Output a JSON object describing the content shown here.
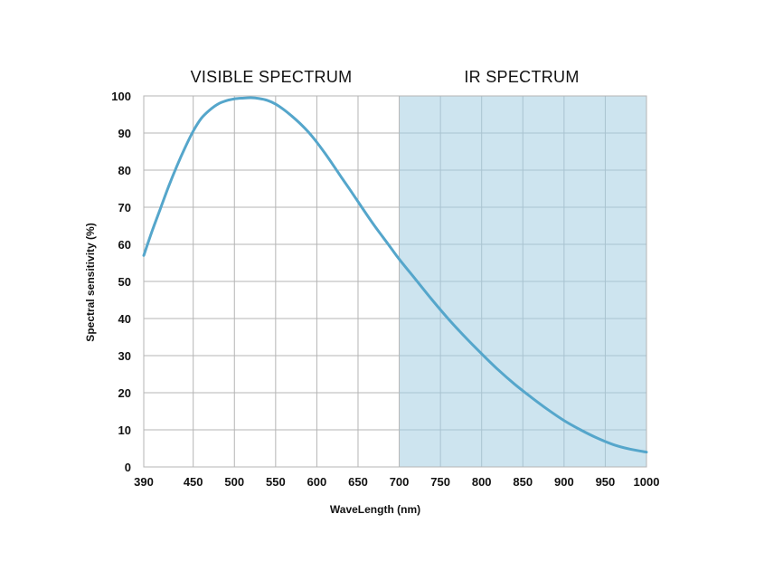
{
  "chart_data": {
    "type": "line",
    "title": "",
    "regions": [
      {
        "label": "VISIBLE SPECTRUM",
        "x_range": [
          390,
          700
        ],
        "shaded": false
      },
      {
        "label": "IR SPECTRUM",
        "x_range": [
          700,
          1000
        ],
        "shaded": true,
        "color": "#cde4ef"
      }
    ],
    "xlabel": "WaveLength (nm)",
    "ylabel": "Spectral sensitivity (%)",
    "xlim": [
      390,
      1000
    ],
    "ylim": [
      0,
      100
    ],
    "x_ticks": [
      390,
      450,
      500,
      550,
      600,
      650,
      700,
      750,
      800,
      850,
      900,
      950,
      1000
    ],
    "y_ticks": [
      0,
      10,
      20,
      30,
      40,
      50,
      60,
      70,
      80,
      90,
      100
    ],
    "grid": true,
    "series": [
      {
        "color": "#55a6cb",
        "x": [
          390,
          400,
          410,
          420,
          430,
          440,
          450,
          460,
          470,
          480,
          490,
          500,
          510,
          520,
          530,
          540,
          550,
          560,
          570,
          580,
          590,
          600,
          610,
          620,
          630,
          640,
          650,
          660,
          670,
          680,
          690,
          700,
          720,
          740,
          760,
          780,
          800,
          820,
          840,
          860,
          880,
          900,
          920,
          940,
          960,
          980,
          1000
        ],
        "y": [
          57,
          63.5,
          69.5,
          75.5,
          81,
          86,
          90.5,
          94,
          96.2,
          97.8,
          98.7,
          99.2,
          99.4,
          99.5,
          99.3,
          98.8,
          97.8,
          96.3,
          94.5,
          92.5,
          90.2,
          87.5,
          84.5,
          81.3,
          78,
          74.8,
          71.5,
          68.2,
          65,
          62,
          59,
          56,
          50.5,
          45,
          39.8,
          35,
          30.5,
          26.2,
          22.3,
          18.8,
          15.5,
          12.5,
          10,
          7.8,
          6,
          4.8,
          4
        ]
      }
    ]
  }
}
